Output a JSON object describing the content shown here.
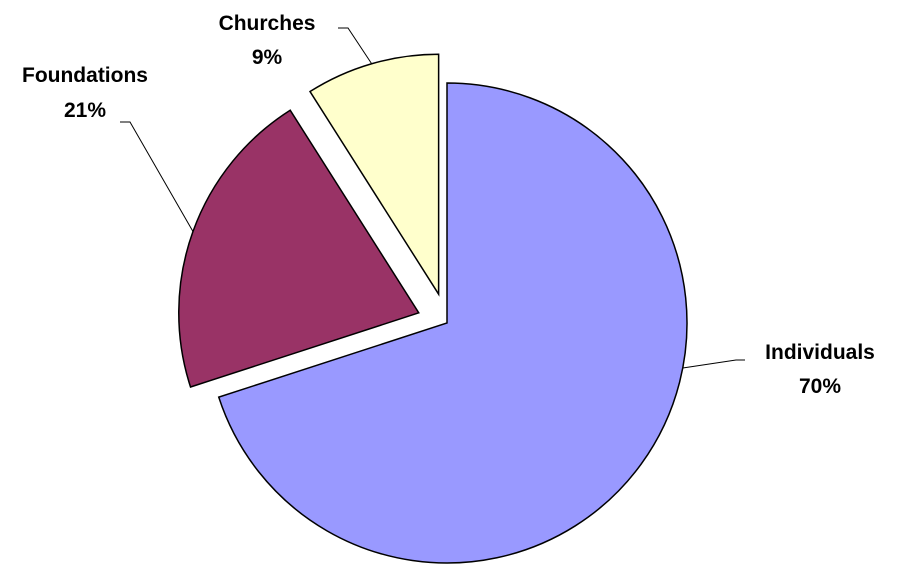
{
  "chart_data": {
    "type": "pie",
    "title": "",
    "slices": [
      {
        "label": "Individuals",
        "percent_label": "70%",
        "value": 70,
        "color": "#9999FF"
      },
      {
        "label": "Foundations",
        "percent_label": "21%",
        "value": 21,
        "color": "#993366"
      },
      {
        "label": "Churches",
        "percent_label": "9%",
        "value": 9,
        "color": "#FFFFCC"
      }
    ],
    "exploded": true,
    "legend": "none",
    "data_labels": "outside-with-leader-lines"
  }
}
